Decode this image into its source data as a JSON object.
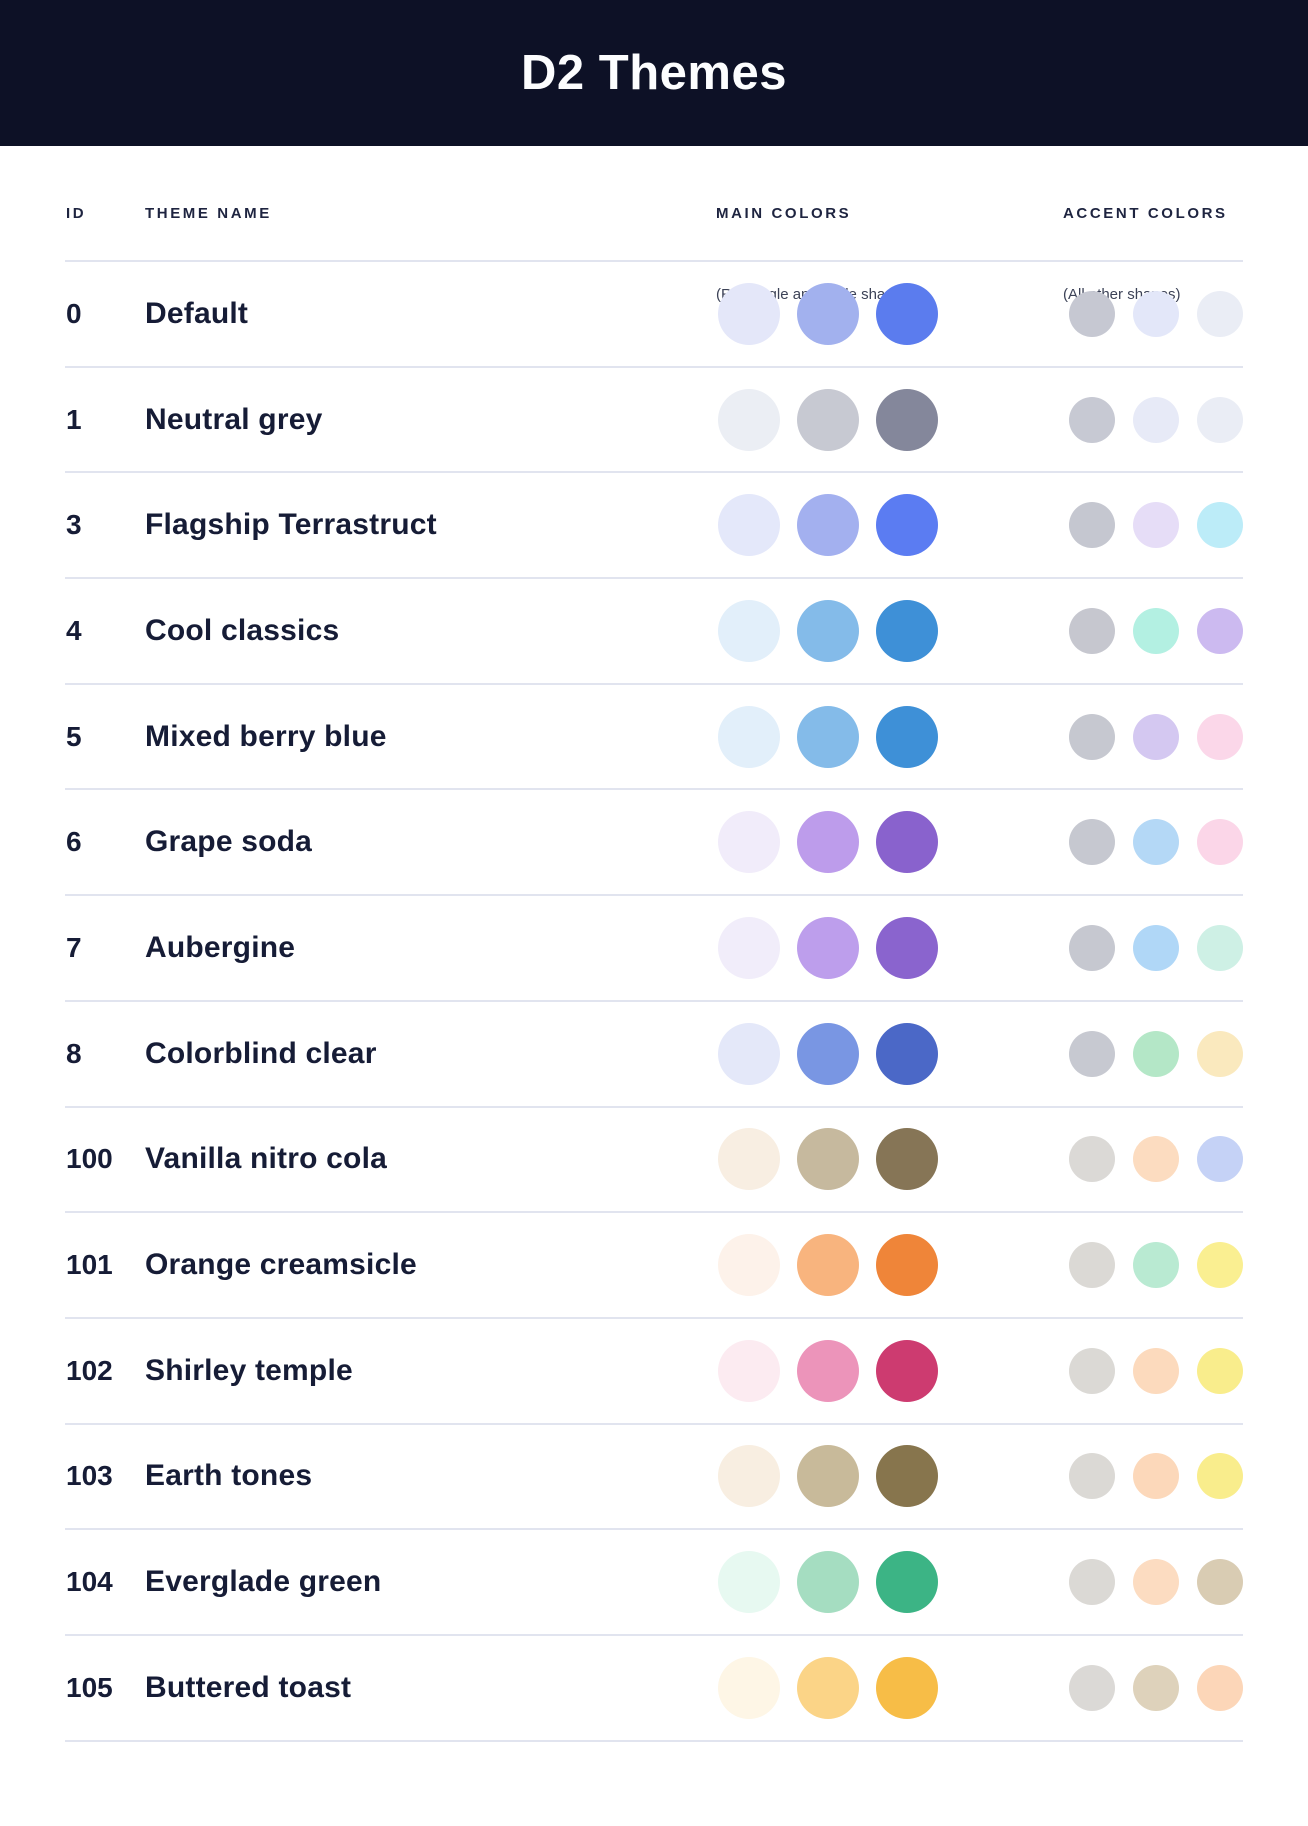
{
  "header": {
    "title": "D2 Themes",
    "background": "#0D1126",
    "title_color": "#FCFDFE"
  },
  "columns": {
    "id_label": "ID",
    "name_label": "THEME NAME",
    "main_label": "MAIN COLORS",
    "main_sublabel": "(Rectangle and circle shapes)",
    "accent_label": "ACCENT COLORS",
    "accent_sublabel": "(All other shapes)"
  },
  "themes": [
    {
      "id": "0",
      "name": "Default",
      "main": [
        "#E4E7F9",
        "#A2B1EE",
        "#5B7CEE"
      ],
      "accent": [
        "#C6C8D2",
        "#E3E7F9",
        "#EAEDF5"
      ]
    },
    {
      "id": "1",
      "name": "Neutral grey",
      "main": [
        "#EBEEF4",
        "#C7C9D2",
        "#84879B"
      ],
      "accent": [
        "#C7C9D3",
        "#E7EAF7",
        "#EAEDF5"
      ]
    },
    {
      "id": "3",
      "name": "Flagship Terrastruct",
      "main": [
        "#E4E8FA",
        "#A3B0EF",
        "#5B7CF2"
      ],
      "accent": [
        "#C5C7D0",
        "#E6DDF7",
        "#BCECF8"
      ]
    },
    {
      "id": "4",
      "name": "Cool classics",
      "main": [
        "#E2EFFA",
        "#84BBE9",
        "#3E90D7"
      ],
      "accent": [
        "#C6C7CF",
        "#B3F0E2",
        "#CCBAF0"
      ]
    },
    {
      "id": "5",
      "name": "Mixed berry blue",
      "main": [
        "#E2EFFA",
        "#84BBE9",
        "#3E90D7"
      ],
      "accent": [
        "#C6C8D0",
        "#D4C8F1",
        "#FBD7E9"
      ]
    },
    {
      "id": "6",
      "name": "Grape soda",
      "main": [
        "#F1ECFA",
        "#BD9CEB",
        "#8962CD"
      ],
      "accent": [
        "#C6C8D0",
        "#B4D8F6",
        "#FBD6E8"
      ]
    },
    {
      "id": "7",
      "name": "Aubergine",
      "main": [
        "#F1EDFA",
        "#BD9EEC",
        "#8A64CE"
      ],
      "accent": [
        "#C6C8D0",
        "#B0D7F7",
        "#CEF0E5"
      ]
    },
    {
      "id": "8",
      "name": "Colorblind clear",
      "main": [
        "#E4E8F9",
        "#7996E3",
        "#4B68C7"
      ],
      "accent": [
        "#C7C9D1",
        "#B4E7C7",
        "#FAE9BE"
      ]
    },
    {
      "id": "100",
      "name": "Vanilla nitro cola",
      "main": [
        "#F8EEE2",
        "#C6B99E",
        "#867556"
      ],
      "accent": [
        "#DBD9D6",
        "#FCDCC0",
        "#C5D2F6"
      ]
    },
    {
      "id": "101",
      "name": "Orange creamsicle",
      "main": [
        "#FDF2EA",
        "#F8B47E",
        "#EF8539"
      ],
      "accent": [
        "#DBD9D5",
        "#B9EAD2",
        "#FAEF91"
      ]
    },
    {
      "id": "102",
      "name": "Shirley temple",
      "main": [
        "#FCEBF1",
        "#EC94BA",
        "#CD3B70"
      ],
      "accent": [
        "#DBD9D5",
        "#FCDABD",
        "#F9ED8C"
      ]
    },
    {
      "id": "103",
      "name": "Earth tones",
      "main": [
        "#F8EEE1",
        "#C8BA9A",
        "#87754D"
      ],
      "accent": [
        "#DBD9D5",
        "#FCD8BA",
        "#F9ED8C"
      ]
    },
    {
      "id": "104",
      "name": "Everglade green",
      "main": [
        "#E7F9F1",
        "#A5DDC1",
        "#3CB485"
      ],
      "accent": [
        "#DBD9D5",
        "#FCDCC1",
        "#D9CCB3"
      ]
    },
    {
      "id": "105",
      "name": "Buttered toast",
      "main": [
        "#FEF6E6",
        "#FBD487",
        "#F7BD47"
      ],
      "accent": [
        "#DBD9D6",
        "#DED2BB",
        "#FCD6B8"
      ]
    }
  ]
}
